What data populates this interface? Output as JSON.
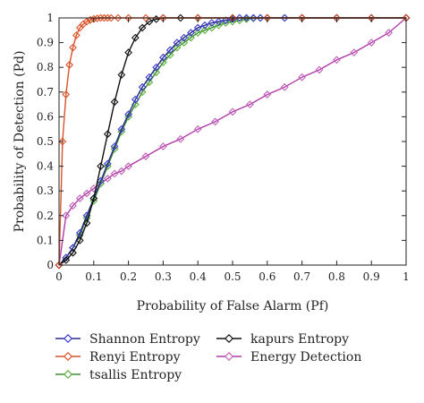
{
  "chart_data": {
    "type": "line",
    "xlabel": "Probability of False Alarm (Pf)",
    "ylabel": "Probability of Detection (Pd)",
    "xlim": [
      0,
      1
    ],
    "ylim": [
      0,
      1
    ],
    "xticks": [
      "0",
      "0.1",
      "0.2",
      "0.3",
      "0.4",
      "0.5",
      "0.6",
      "0.7",
      "0.8",
      "0.9",
      "1"
    ],
    "yticks": [
      "0",
      "0.1",
      "0.2",
      "0.3",
      "0.4",
      "0.5",
      "0.6",
      "0.7",
      "0.8",
      "0.9",
      "1"
    ],
    "grid": false,
    "legend_placement": "below",
    "series": [
      {
        "name": "Shannon Entropy",
        "line_color": "#2b2b8c",
        "marker_color": "#3a3acb",
        "marker": "diamond",
        "x": [
          0,
          0.02,
          0.04,
          0.06,
          0.08,
          0.1,
          0.12,
          0.14,
          0.16,
          0.18,
          0.2,
          0.22,
          0.24,
          0.26,
          0.28,
          0.3,
          0.32,
          0.34,
          0.36,
          0.38,
          0.4,
          0.42,
          0.44,
          0.46,
          0.48,
          0.5,
          0.52,
          0.54,
          0.56,
          0.58,
          0.6,
          0.65,
          0.7,
          0.8,
          0.9,
          1.0
        ],
        "y": [
          0,
          0.03,
          0.07,
          0.13,
          0.2,
          0.27,
          0.34,
          0.41,
          0.48,
          0.55,
          0.61,
          0.67,
          0.72,
          0.76,
          0.8,
          0.84,
          0.87,
          0.9,
          0.92,
          0.94,
          0.96,
          0.97,
          0.98,
          0.985,
          0.99,
          0.995,
          1,
          1,
          1,
          1,
          1,
          1,
          1,
          1,
          1,
          1
        ]
      },
      {
        "name": "Renyi Entropy",
        "line_color": "#d9532a",
        "marker_color": "#d9532a",
        "marker": "diamond",
        "x": [
          0,
          0.01,
          0.02,
          0.03,
          0.04,
          0.05,
          0.06,
          0.07,
          0.08,
          0.09,
          0.1,
          0.11,
          0.12,
          0.13,
          0.14,
          0.15,
          0.17,
          0.2,
          0.25,
          0.3,
          0.4,
          0.5,
          0.6,
          0.7,
          0.8,
          0.9,
          1.0
        ],
        "y": [
          0,
          0.5,
          0.69,
          0.81,
          0.88,
          0.93,
          0.96,
          0.975,
          0.985,
          0.992,
          0.996,
          0.998,
          1,
          1,
          1,
          1,
          1,
          1,
          1,
          1,
          1,
          1,
          1,
          1,
          1,
          1,
          1
        ]
      },
      {
        "name": "tsallis Entropy",
        "line_color": "#3b8a2e",
        "marker_color": "#5ab03c",
        "marker": "diamond",
        "x": [
          0,
          0.02,
          0.04,
          0.06,
          0.08,
          0.1,
          0.12,
          0.14,
          0.16,
          0.18,
          0.2,
          0.22,
          0.24,
          0.26,
          0.28,
          0.3,
          0.32,
          0.34,
          0.36,
          0.38,
          0.4,
          0.42,
          0.44,
          0.46,
          0.48,
          0.5,
          0.52,
          0.54,
          0.56,
          0.58,
          0.6,
          0.65,
          0.7,
          0.8,
          0.9,
          1.0
        ],
        "y": [
          0,
          0.03,
          0.07,
          0.12,
          0.19,
          0.26,
          0.33,
          0.4,
          0.47,
          0.54,
          0.6,
          0.65,
          0.7,
          0.74,
          0.78,
          0.82,
          0.85,
          0.88,
          0.9,
          0.92,
          0.94,
          0.95,
          0.96,
          0.97,
          0.98,
          0.985,
          0.99,
          0.995,
          0.998,
          1,
          1,
          1,
          1,
          1,
          1,
          1
        ]
      },
      {
        "name": "kapurs Entropy",
        "line_color": "#111111",
        "marker_color": "#111111",
        "marker": "diamond",
        "x": [
          0,
          0.02,
          0.04,
          0.06,
          0.08,
          0.1,
          0.12,
          0.14,
          0.16,
          0.18,
          0.2,
          0.22,
          0.24,
          0.26,
          0.28,
          0.3,
          0.35,
          0.4,
          0.5,
          0.6,
          0.7,
          0.8,
          0.9,
          1.0
        ],
        "y": [
          0,
          0.02,
          0.05,
          0.1,
          0.17,
          0.27,
          0.4,
          0.53,
          0.66,
          0.77,
          0.86,
          0.92,
          0.96,
          0.985,
          0.995,
          1,
          1,
          1,
          1,
          1,
          1,
          1,
          1,
          1
        ]
      },
      {
        "name": "Energy Detection",
        "line_color": "#b03aa8",
        "marker_color": "#c060b8",
        "marker": "diamond",
        "x": [
          0,
          0.02,
          0.04,
          0.06,
          0.08,
          0.1,
          0.12,
          0.14,
          0.16,
          0.18,
          0.2,
          0.25,
          0.3,
          0.35,
          0.4,
          0.45,
          0.5,
          0.55,
          0.6,
          0.65,
          0.7,
          0.75,
          0.8,
          0.85,
          0.9,
          0.95,
          1.0
        ],
        "y": [
          0,
          0.2,
          0.24,
          0.27,
          0.29,
          0.31,
          0.33,
          0.35,
          0.37,
          0.38,
          0.4,
          0.44,
          0.48,
          0.51,
          0.55,
          0.58,
          0.62,
          0.65,
          0.69,
          0.72,
          0.76,
          0.79,
          0.83,
          0.86,
          0.9,
          0.94,
          1.0
        ]
      }
    ]
  }
}
